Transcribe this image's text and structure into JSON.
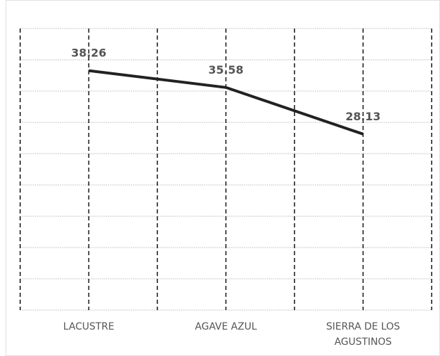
{
  "chart_data": {
    "type": "line",
    "categories": [
      "LACUSTRE",
      "AGAVE AZUL",
      "SIERRA DE LOS AGUSTINOS"
    ],
    "values": [
      38.26,
      35.58,
      28.13
    ],
    "color": "#222222",
    "ylim": [
      0,
      45
    ],
    "yticks": [
      0,
      5,
      10,
      15,
      20,
      25,
      30,
      35,
      40,
      45
    ],
    "grid": true
  }
}
